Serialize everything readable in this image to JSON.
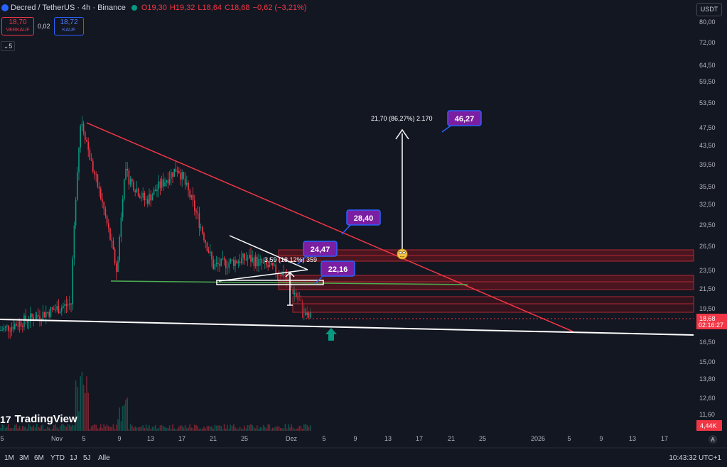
{
  "header": {
    "symbol_title": "Decred / TetherUS · 4h · Binance",
    "open_label": "O19,30",
    "high_label": "H19,32",
    "low_label": "L18,64",
    "close_label": "C18,68",
    "change_label": "−0,62 (−3,21%)"
  },
  "trade": {
    "sell_price": "18,70",
    "sell_label": "VERKAUF",
    "spread": "0,02",
    "buy_price": "18,72",
    "buy_label": "KAUF"
  },
  "indicator_toggle": "5",
  "currency_button": "USDT",
  "price_axis": {
    "labels": [
      "80,00",
      "72,00",
      "64,50",
      "59,50",
      "53,50",
      "47,50",
      "43,50",
      "39,50",
      "35,50",
      "32,50",
      "29,50",
      "26,50",
      "23,50",
      "21,50",
      "19,50",
      "16,50",
      "15,00",
      "13,80",
      "12,60",
      "11,60"
    ],
    "current_price": "18,68",
    "countdown": "02:16:27",
    "volume_value": "4,44K",
    "auto_label": "A"
  },
  "time_axis": {
    "labels": [
      "5",
      "Nov",
      "5",
      "9",
      "13",
      "17",
      "21",
      "25",
      "Dez",
      "5",
      "9",
      "13",
      "17",
      "21",
      "25",
      "2026",
      "5",
      "9",
      "13",
      "17"
    ]
  },
  "annotations": {
    "target_note": "21,70 (86,27%) 2.170",
    "target_price": "46,27",
    "breakout_price": "28,40",
    "resistance_price": "24,47",
    "support_price": "22,16",
    "pennant_note": "3,59 (18,12%) 359"
  },
  "brand": "TradingView",
  "timeframes": [
    "1M",
    "3M",
    "6M",
    "YTD",
    "1J",
    "5J",
    "Alle"
  ],
  "clock": "10:43:32 UTC+1",
  "colors": {
    "background": "#131722",
    "up": "#089981",
    "down": "#f23645",
    "trendline": "#f23645",
    "support_line": "#4caf50",
    "label_purple": "#7b1fa2",
    "label_border": "#2962ff"
  },
  "chart_data": {
    "type": "candlestick",
    "symbol": "Decred / TetherUS",
    "interval": "4h",
    "exchange": "Binance",
    "scale": "log",
    "ohlc_last": {
      "open": 19.3,
      "high": 19.32,
      "low": 18.64,
      "close": 18.68,
      "change": -0.62,
      "change_pct": -3.21
    },
    "price_ticks": [
      80.0,
      72.0,
      64.5,
      59.5,
      53.5,
      47.5,
      43.5,
      39.5,
      35.5,
      32.5,
      29.5,
      26.5,
      23.5,
      21.5,
      19.5,
      16.5,
      15.0,
      13.8,
      12.6,
      11.6
    ],
    "approx_price_path": [
      {
        "date": "late Oct",
        "price": 17.5
      },
      {
        "date": "Nov 3",
        "price": 20
      },
      {
        "date": "Nov 5",
        "price": 50
      },
      {
        "date": "Nov 7",
        "price": 40
      },
      {
        "date": "Nov 9",
        "price": 23
      },
      {
        "date": "Nov 10",
        "price": 38
      },
      {
        "date": "Nov 13",
        "price": 33
      },
      {
        "date": "Nov 16",
        "price": 39
      },
      {
        "date": "Nov 21",
        "price": 24
      },
      {
        "date": "Nov 26",
        "price": 25
      },
      {
        "date": "Dez 1",
        "price": 23
      },
      {
        "date": "Dez 2",
        "price": 18.7
      }
    ],
    "price_levels": [
      46.27,
      28.4,
      24.47,
      22.16
    ],
    "current_price": 18.68,
    "volume_last": "4,44K"
  }
}
